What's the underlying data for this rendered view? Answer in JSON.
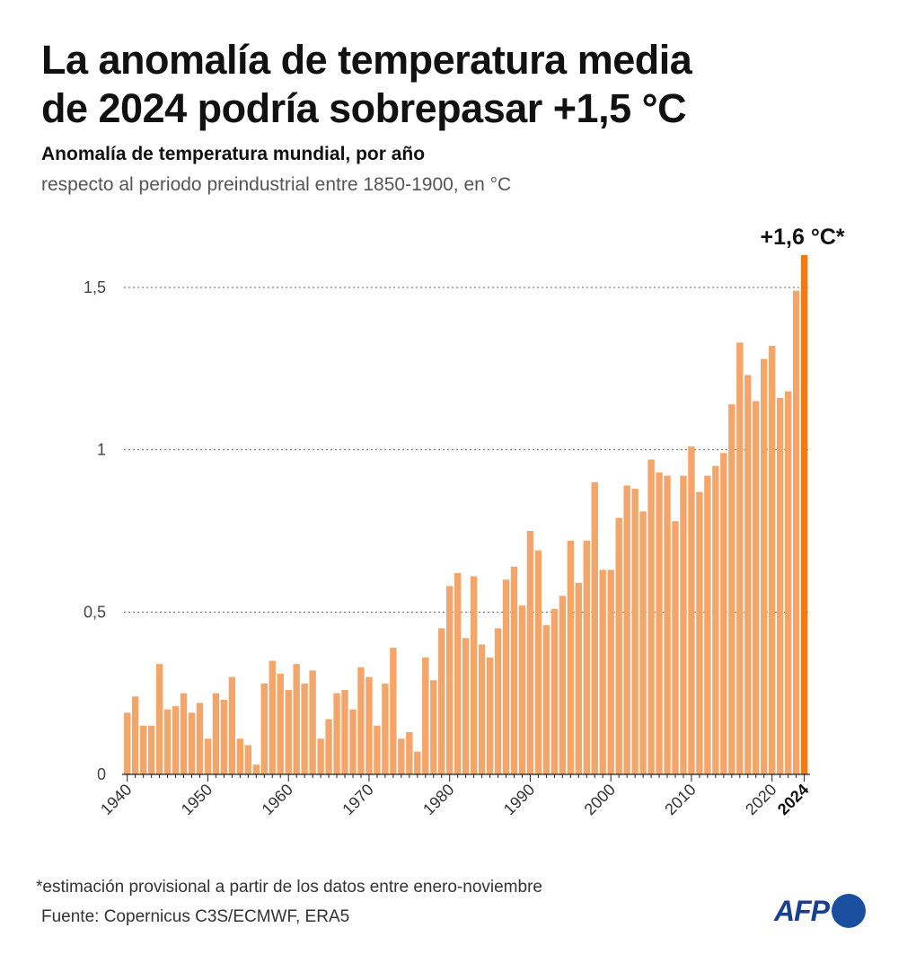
{
  "header": {
    "title_line1": "La anomalía de temperatura media",
    "title_line2": "de 2024 podría sobrepasar +1,5 °C",
    "subtitle": "Anomalía de temperatura mundial, por año",
    "subtitle2": "respecto al periodo preindustrial entre 1850-1900, en °C"
  },
  "footer": {
    "footnote": "*estimación provisional a partir de los datos entre enero-noviembre",
    "source": "Fuente: Copernicus C3S/ECMWF, ERA5",
    "logo_text": "AFP"
  },
  "colors": {
    "bar": "#f4a66a",
    "highlight": "#ee7a1a",
    "logo": "#1a4fa0"
  },
  "chart_data": {
    "type": "bar",
    "title": "Anomalía de temperatura mundial, por año",
    "ylim": [
      0,
      1.6
    ],
    "yticks": [
      0,
      0.5,
      1,
      1.5
    ],
    "ytick_labels": [
      "0",
      "0,5",
      "1",
      "1,5"
    ],
    "xtick_labels": [
      "1940",
      "1950",
      "1960",
      "1970",
      "1980",
      "1990",
      "2000",
      "2010",
      "2020",
      "2024"
    ],
    "grid": "horizontal dotted",
    "highlight_year": 2024,
    "annotation": "+1,6 °C*",
    "x": [
      1940,
      1941,
      1942,
      1943,
      1944,
      1945,
      1946,
      1947,
      1948,
      1949,
      1950,
      1951,
      1952,
      1953,
      1954,
      1955,
      1956,
      1957,
      1958,
      1959,
      1960,
      1961,
      1962,
      1963,
      1964,
      1965,
      1966,
      1967,
      1968,
      1969,
      1970,
      1971,
      1972,
      1973,
      1974,
      1975,
      1976,
      1977,
      1978,
      1979,
      1980,
      1981,
      1982,
      1983,
      1984,
      1985,
      1986,
      1987,
      1988,
      1989,
      1990,
      1991,
      1992,
      1993,
      1994,
      1995,
      1996,
      1997,
      1998,
      1999,
      2000,
      2001,
      2002,
      2003,
      2004,
      2005,
      2006,
      2007,
      2008,
      2009,
      2010,
      2011,
      2012,
      2013,
      2014,
      2015,
      2016,
      2017,
      2018,
      2019,
      2020,
      2021,
      2022,
      2023,
      2024
    ],
    "values": [
      0.19,
      0.24,
      0.15,
      0.15,
      0.34,
      0.2,
      0.21,
      0.25,
      0.19,
      0.22,
      0.11,
      0.25,
      0.23,
      0.3,
      0.11,
      0.09,
      0.03,
      0.28,
      0.35,
      0.31,
      0.26,
      0.34,
      0.28,
      0.32,
      0.11,
      0.17,
      0.25,
      0.26,
      0.2,
      0.33,
      0.3,
      0.15,
      0.28,
      0.39,
      0.11,
      0.13,
      0.07,
      0.36,
      0.29,
      0.45,
      0.58,
      0.62,
      0.42,
      0.61,
      0.4,
      0.36,
      0.45,
      0.6,
      0.64,
      0.52,
      0.75,
      0.69,
      0.46,
      0.51,
      0.55,
      0.72,
      0.59,
      0.72,
      0.9,
      0.63,
      0.63,
      0.79,
      0.89,
      0.88,
      0.81,
      0.97,
      0.93,
      0.92,
      0.78,
      0.92,
      1.01,
      0.87,
      0.92,
      0.95,
      0.99,
      1.14,
      1.33,
      1.23,
      1.15,
      1.28,
      1.32,
      1.16,
      1.18,
      1.49,
      1.6
    ]
  }
}
